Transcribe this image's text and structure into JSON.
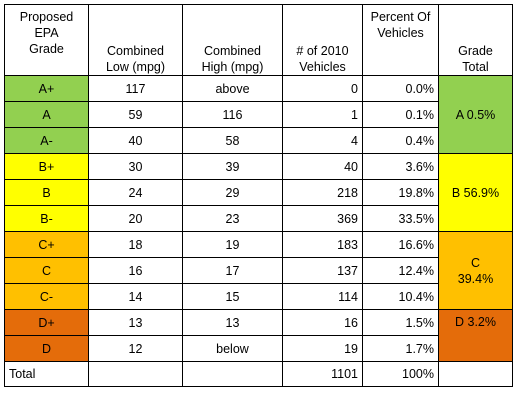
{
  "headers": {
    "grade": [
      "Proposed",
      "EPA",
      "Grade"
    ],
    "low": [
      "Combined",
      "Low (mpg)"
    ],
    "high": [
      "Combined",
      "High (mpg)"
    ],
    "count": [
      "# of 2010",
      "Vehicles"
    ],
    "percent": [
      "Percent Of",
      "Vehicles"
    ],
    "total": [
      "Grade",
      "Total"
    ]
  },
  "rows": [
    {
      "grade": "A+",
      "low": "117",
      "high": "above",
      "count": "0",
      "percent": "0.0%"
    },
    {
      "grade": "A",
      "low": "59",
      "high": "116",
      "count": "1",
      "percent": "0.1%"
    },
    {
      "grade": "A-",
      "low": "40",
      "high": "58",
      "count": "4",
      "percent": "0.4%"
    },
    {
      "grade": "B+",
      "low": "30",
      "high": "39",
      "count": "40",
      "percent": "3.6%"
    },
    {
      "grade": "B",
      "low": "24",
      "high": "29",
      "count": "218",
      "percent": "19.8%"
    },
    {
      "grade": "B-",
      "low": "20",
      "high": "23",
      "count": "369",
      "percent": "33.5%"
    },
    {
      "grade": "C+",
      "low": "18",
      "high": "19",
      "count": "183",
      "percent": "16.6%"
    },
    {
      "grade": "C",
      "low": "16",
      "high": "17",
      "count": "137",
      "percent": "12.4%"
    },
    {
      "grade": "C-",
      "low": "14",
      "high": "15",
      "count": "114",
      "percent": "10.4%"
    },
    {
      "grade": "D+",
      "low": "13",
      "high": "13",
      "count": "16",
      "percent": "1.5%"
    },
    {
      "grade": "D",
      "low": "12",
      "high": "below",
      "count": "19",
      "percent": "1.7%"
    }
  ],
  "grade_totals": {
    "a": "A 0.5%",
    "b": "B 56.9%",
    "c_letter": "C",
    "c_pct": "39.4%",
    "d": "D 3.2%"
  },
  "total_row": {
    "label": "Total",
    "count": "1101",
    "percent": "100%"
  },
  "colors": {
    "green": "#92d050",
    "yellow": "#ffff00",
    "amber": "#ffc000",
    "orange": "#e46c0a"
  }
}
